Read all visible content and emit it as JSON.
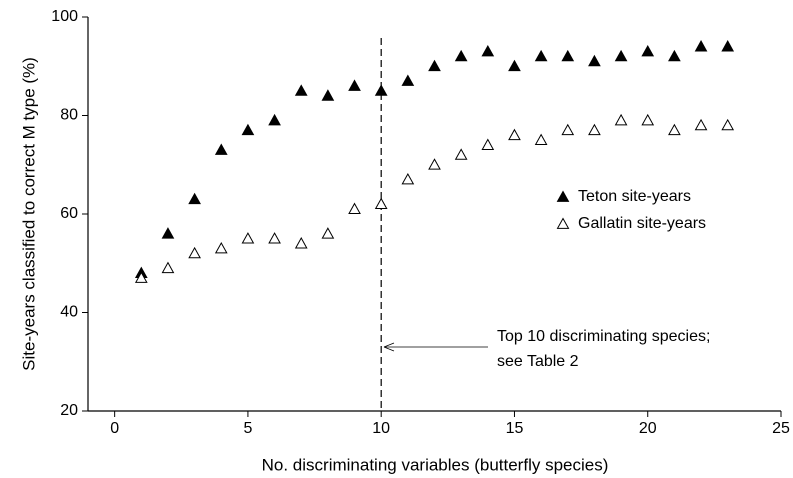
{
  "chart_data": {
    "type": "scatter",
    "xlabel": "No. discriminating variables (butterfly species)",
    "ylabel": "Site-years classified to correct M type (%)",
    "x": [
      1,
      2,
      3,
      4,
      5,
      6,
      7,
      8,
      9,
      10,
      11,
      12,
      13,
      14,
      15,
      16,
      17,
      18,
      19,
      20,
      21,
      22,
      23
    ],
    "series": [
      {
        "name": "Teton site-years",
        "color": "#000000",
        "filled": true,
        "values": [
          48,
          56,
          63,
          73,
          77,
          79,
          85,
          84,
          86,
          85,
          87,
          90,
          92,
          93,
          90,
          92,
          92,
          91,
          92,
          93,
          92,
          94,
          94
        ]
      },
      {
        "name": "Gallatin site-years",
        "color": "#000000",
        "filled": false,
        "values": [
          47,
          49,
          52,
          53,
          55,
          55,
          54,
          56,
          61,
          62,
          67,
          70,
          72,
          74,
          76,
          75,
          77,
          77,
          79,
          79,
          77,
          78,
          78
        ]
      }
    ],
    "xlim": [
      -1,
      25
    ],
    "xticks": [
      0,
      5,
      10,
      15,
      20,
      25
    ],
    "ylim": [
      20,
      100
    ],
    "yticks": [
      20,
      40,
      60,
      80,
      100
    ],
    "grid": false,
    "legend": "right",
    "vline": 10,
    "annotation": [
      "Top 10 discriminating species;",
      "see Table 2"
    ]
  }
}
